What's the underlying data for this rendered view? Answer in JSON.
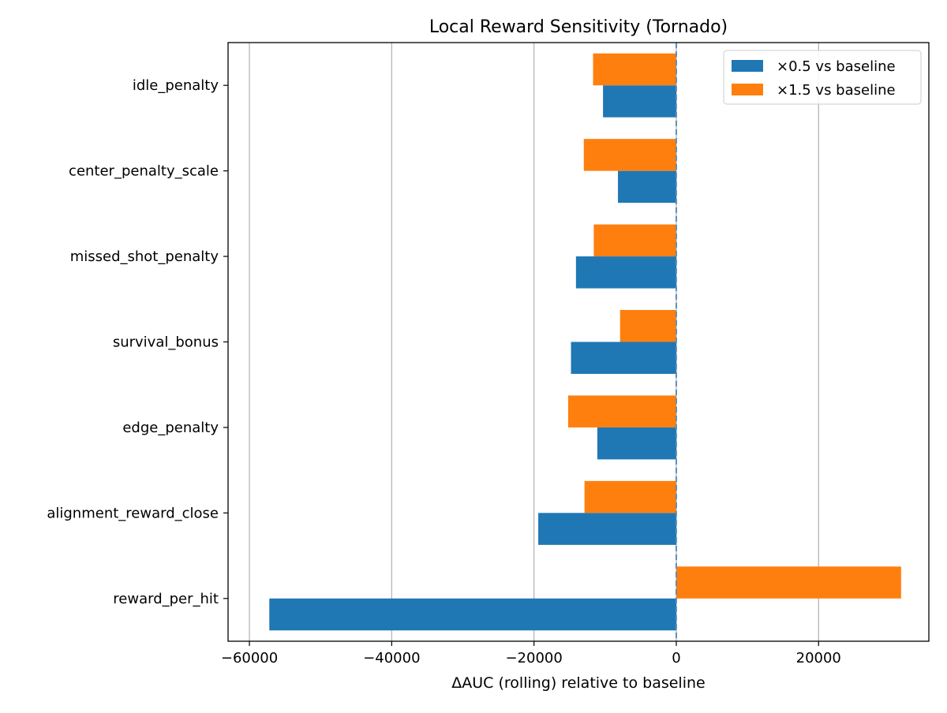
{
  "chart_data": {
    "type": "bar",
    "orientation": "horizontal",
    "title": "Local Reward Sensitivity (Tornado)",
    "xlabel": "ΔAUC (rolling) relative to baseline",
    "ylabel": "",
    "xlim": [
      -63000,
      35500
    ],
    "xticks": [
      -60000,
      -40000,
      -20000,
      0,
      20000
    ],
    "xtick_labels": [
      "−60000",
      "−40000",
      "−20000",
      "0",
      "20000"
    ],
    "grid": "x",
    "reference_line": {
      "x": 0,
      "style": "dashed"
    },
    "legend_position": "top-right",
    "categories": [
      "idle_penalty",
      "center_penalty_scale",
      "missed_shot_penalty",
      "survival_bonus",
      "edge_penalty",
      "alignment_reward_close",
      "reward_per_hit"
    ],
    "series": [
      {
        "name": "×0.5 vs baseline",
        "color": "#1f77b4",
        "values": [
          -10300,
          -8200,
          -14100,
          -14800,
          -11100,
          -19400,
          -57200
        ]
      },
      {
        "name": "×1.5 vs baseline",
        "color": "#ff7f0e",
        "values": [
          -11700,
          -13000,
          -11600,
          -7900,
          -15200,
          -12900,
          31600
        ]
      }
    ]
  }
}
